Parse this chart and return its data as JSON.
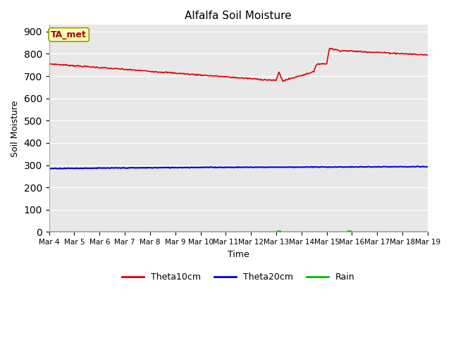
{
  "title": "Alfalfa Soil Moisture",
  "xlabel": "Time",
  "ylabel": "Soil Moisture",
  "ylim": [
    0,
    930
  ],
  "yticks": [
    0,
    100,
    200,
    300,
    400,
    500,
    600,
    700,
    800,
    900
  ],
  "xtick_labels": [
    "Mar 4",
    "Mar 5",
    "Mar 6",
    "Mar 7",
    "Mar 8",
    "Mar 9",
    "Mar 10",
    "Mar 11",
    "Mar 12",
    "Mar 13",
    "Mar 14",
    "Mar 15",
    "Mar 16",
    "Mar 17",
    "Mar 18",
    "Mar 19"
  ],
  "annotation_text": "TA_met",
  "annotation_facecolor": "#FFFFC0",
  "annotation_edgecolor": "#999900",
  "annotation_textcolor": "#AA0000",
  "bg_color": "#E8E8E8",
  "line_red_color": "#DD0000",
  "line_blue_color": "#0000DD",
  "line_green_color": "#00BB00",
  "legend_labels": [
    "Theta10cm",
    "Theta20cm",
    "Rain"
  ],
  "fig_bg": "#FFFFFF"
}
